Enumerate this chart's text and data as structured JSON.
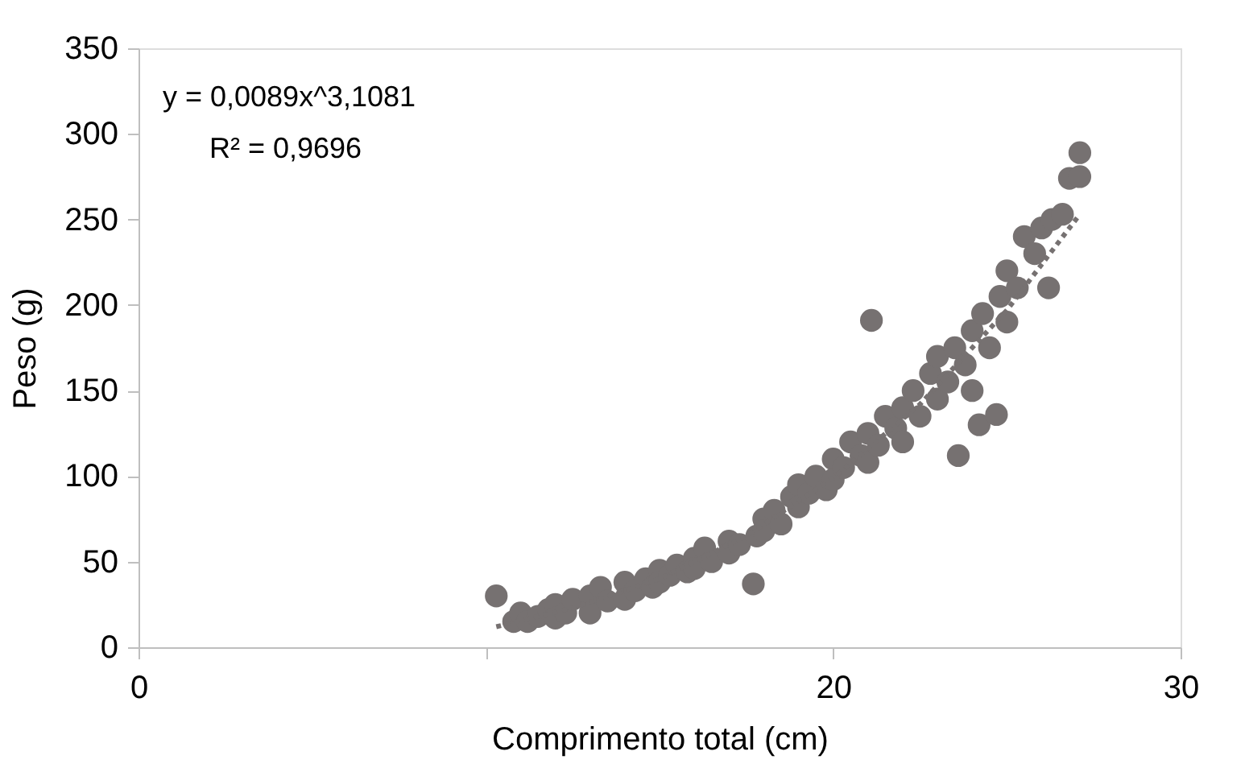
{
  "chart_data": {
    "type": "scatter",
    "xlabel": "Comprimento total (cm)",
    "ylabel": "Peso (g)",
    "xlim": [
      0,
      30
    ],
    "xticks": [
      0,
      {
        "value": 10,
        "label": null
      },
      20,
      30
    ],
    "ylim": [
      0,
      350
    ],
    "yticks": [
      0,
      50,
      100,
      150,
      200,
      250,
      300,
      350
    ],
    "grid": false,
    "marker": "circle",
    "annotations": [
      "y = 0,0089x^3,1081",
      "R² = 0,9696"
    ],
    "series": [
      {
        "color": "#767171",
        "x": [
          10.3,
          10.8,
          11,
          11.2,
          11.5,
          11.8,
          12,
          12,
          12.3,
          12.5,
          13,
          13,
          13.3,
          13.5,
          14,
          14,
          14.3,
          14.6,
          14.8,
          15,
          15,
          15.3,
          15.5,
          15.8,
          16,
          16,
          16.3,
          16.5,
          17,
          17,
          17.3,
          17.7,
          17.8,
          18,
          18,
          18.3,
          18.5,
          18.8,
          19,
          19,
          19.3,
          19.5,
          19.8,
          20,
          20,
          20.3,
          20.5,
          20.8,
          21,
          21,
          21.1,
          21.3,
          21.5,
          21.8,
          22,
          22,
          22.3,
          22.5,
          22.8,
          23,
          23,
          23.3,
          23.5,
          23.6,
          23.8,
          24,
          24,
          24.2,
          24.3,
          24.5,
          24.7,
          24.8,
          25,
          25,
          25.3,
          25.5,
          25.8,
          26,
          26.2,
          26.3,
          26.6,
          26.8,
          27.1,
          27.1
        ],
        "values": [
          30,
          15,
          20,
          15,
          18,
          22,
          25,
          17,
          20,
          28,
          30,
          20,
          35,
          27,
          38,
          28,
          33,
          40,
          35,
          45,
          38,
          42,
          48,
          44,
          52,
          46,
          58,
          50,
          62,
          55,
          60,
          37,
          65,
          75,
          68,
          80,
          72,
          88,
          95,
          82,
          90,
          100,
          92,
          110,
          98,
          105,
          120,
          112,
          125,
          108,
          191,
          118,
          135,
          128,
          140,
          120,
          150,
          135,
          160,
          145,
          170,
          155,
          175,
          112,
          165,
          185,
          150,
          130,
          195,
          175,
          136,
          205,
          190,
          220,
          210,
          240,
          230,
          245,
          210,
          250,
          253,
          274,
          289,
          275
        ]
      },
      {
        "type": "line",
        "color": "#767171",
        "line_style": "dotted",
        "marker": "none",
        "x": [
          10.3,
          12.5,
          15,
          17.5,
          20,
          22.5,
          25,
          27.1
        ],
        "values": [
          12,
          23,
          40,
          65,
          99,
          142,
          197,
          253
        ]
      }
    ]
  }
}
